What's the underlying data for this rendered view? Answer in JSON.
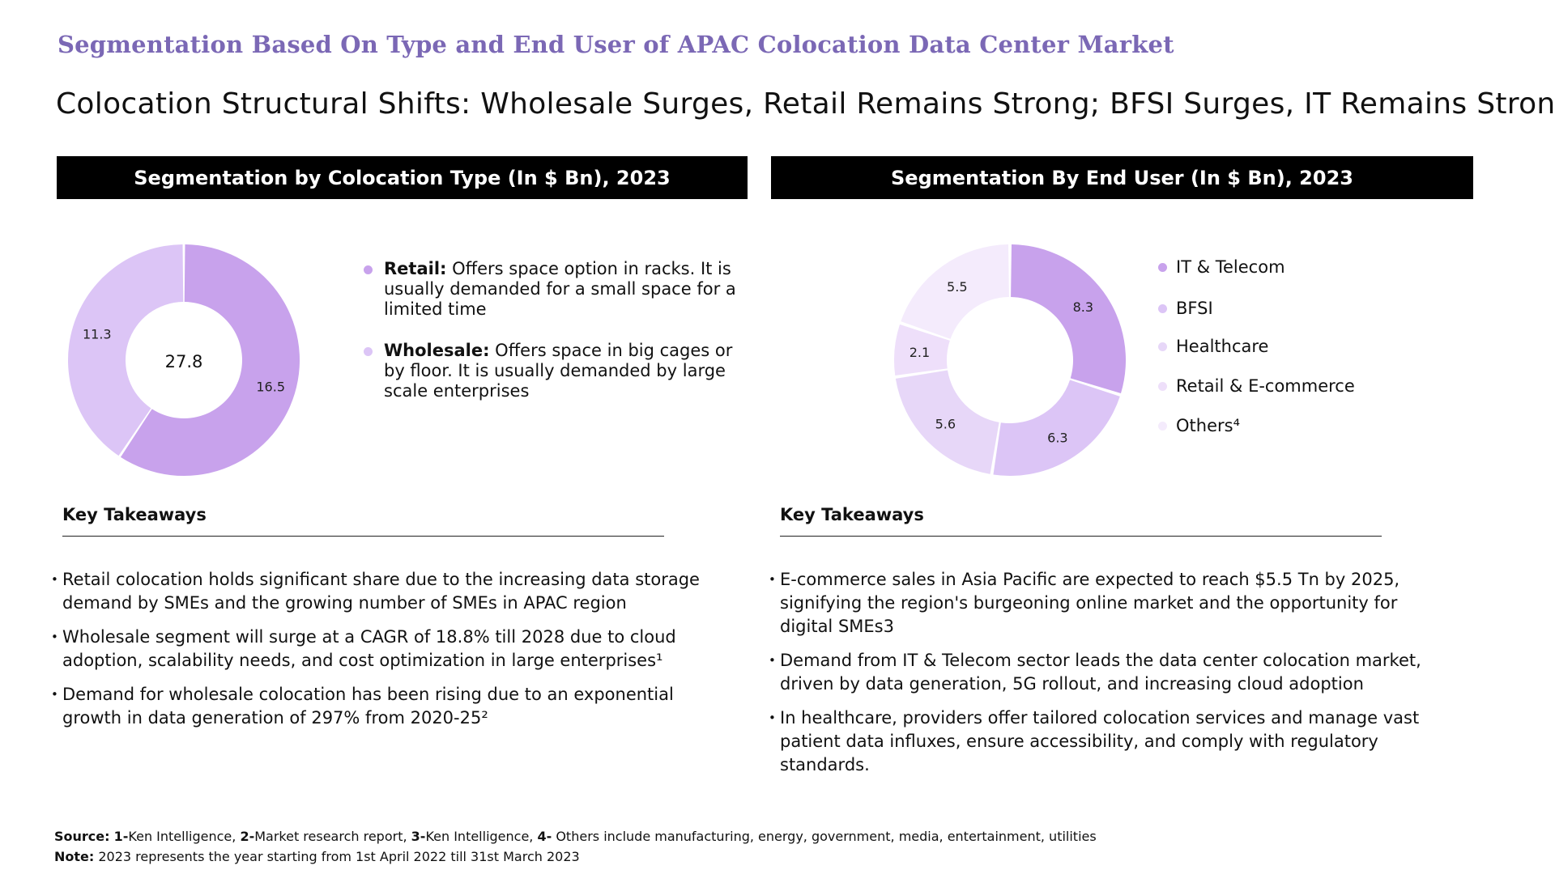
{
  "kicker": "Segmentation Based On Type and End User of APAC Colocation Data Center Market",
  "headline": "Colocation Structural Shifts: Wholesale Surges, Retail Remains Strong; BFSI Surges, IT Remains Strong",
  "left_panel": {
    "banner": "Segmentation by Colocation Type (In $ Bn), 2023",
    "center_total": "27.8",
    "descriptions": [
      {
        "term": "Retail:",
        "text": " Offers space option in racks. It is usually demanded for a small space for a limited time",
        "color": "#c8a2ec"
      },
      {
        "term": "Wholesale:",
        "text": " Offers space in big cages or by floor. It is usually demanded by large scale enterprises",
        "color": "#dcc5f6"
      }
    ],
    "key_takeaways_title": "Key Takeaways",
    "takeaways": [
      "Retail colocation holds significant share due to the increasing data storage demand by SMEs and the growing number of SMEs in APAC region",
      "Wholesale segment will surge at a CAGR of 18.8% till 2028 due to cloud adoption, scalability needs, and cost optimization in large enterprises¹",
      "Demand for wholesale colocation has been rising due to an exponential growth in data generation of 297% from 2020-25²"
    ]
  },
  "right_panel": {
    "banner": "Segmentation By End User (In $ Bn), 2023",
    "key_takeaways_title": "Key Takeaways",
    "takeaways": [
      "E-commerce sales in Asia Pacific are expected to reach $5.5 Tn by 2025, signifying the region's burgeoning online market and the opportunity for digital SMEs3",
      "Demand from IT & Telecom sector leads the data center colocation market, driven by data generation, 5G rollout, and increasing cloud adoption",
      "In healthcare, providers offer tailored colocation services and manage vast patient data influxes, ensure accessibility, and comply with regulatory standards."
    ]
  },
  "chart_data": [
    {
      "type": "pie",
      "title": "Segmentation by Colocation Type (In $ Bn), 2023",
      "center_label": "27.8",
      "slices": [
        {
          "label": "Retail",
          "value": 16.5,
          "color": "#c8a2ec"
        },
        {
          "label": "Wholesale",
          "value": 11.3,
          "color": "#dcc5f6"
        }
      ]
    },
    {
      "type": "pie",
      "title": "Segmentation By End User (In $ Bn), 2023",
      "slices": [
        {
          "label": "IT & Telecom",
          "value": 8.3,
          "color": "#c8a2ec"
        },
        {
          "label": "BFSI",
          "value": 6.3,
          "color": "#dcc5f6"
        },
        {
          "label": "Healthcare",
          "value": 5.6,
          "color": "#e7d7f8"
        },
        {
          "label": "Retail & E-commerce",
          "value": 2.1,
          "color": "#eedffa"
        },
        {
          "label": "Others⁴",
          "value": 5.5,
          "color": "#f4ebfc"
        }
      ]
    }
  ],
  "footer": {
    "source_label": "Source:",
    "source_parts": [
      {
        "key": "1-",
        "text": "Ken Intelligence, "
      },
      {
        "key": "2-",
        "text": "Market research report, "
      },
      {
        "key": "3-",
        "text": "Ken Intelligence, "
      },
      {
        "key": "4-",
        "text": " Others include manufacturing, energy, government, media, entertainment, utilities"
      }
    ],
    "note_label": "Note:",
    "note_text": " 2023 represents the year starting from 1st  April 2022 till 31st March 2023"
  }
}
